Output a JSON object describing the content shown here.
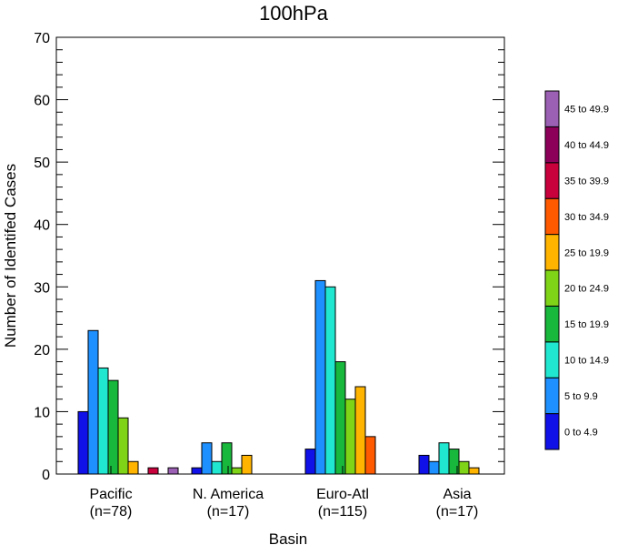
{
  "chart_data": {
    "type": "bar",
    "title": "100hPa",
    "xlabel": "Basin",
    "ylabel": "Number of Identifed Cases",
    "ylim": [
      0,
      70
    ],
    "ytick_labels": [
      "0",
      "10",
      "20",
      "30",
      "40",
      "50",
      "60",
      "70"
    ],
    "categories": [
      {
        "name": "Pacific",
        "count": "(n=78)"
      },
      {
        "name": "N. America",
        "count": "(n=17)"
      },
      {
        "name": "Euro-Atl",
        "count": "(n=115)"
      },
      {
        "name": "Asia",
        "count": "(n=17)"
      }
    ],
    "series": [
      {
        "name": "0 to 4.9",
        "color": "#1010e8",
        "values": [
          10,
          1,
          4,
          3
        ]
      },
      {
        "name": "5 to 9.9",
        "color": "#1e90ff",
        "values": [
          23,
          5,
          31,
          2
        ]
      },
      {
        "name": "10 to 14.9",
        "color": "#20e8d0",
        "values": [
          17,
          2,
          30,
          5
        ]
      },
      {
        "name": "15 to 19.9",
        "color": "#18b83c",
        "values": [
          15,
          5,
          18,
          4
        ]
      },
      {
        "name": "20 to 24.9",
        "color": "#80d418",
        "values": [
          9,
          1,
          12,
          2
        ]
      },
      {
        "name": "25 to 19.9",
        "color": "#ffb400",
        "values": [
          2,
          3,
          14,
          1
        ]
      },
      {
        "name": "30 to 34.9",
        "color": "#ff5a00",
        "values": [
          0,
          0,
          6,
          0
        ]
      },
      {
        "name": "35 to 39.9",
        "color": "#c8003c",
        "values": [
          1,
          0,
          0,
          0
        ]
      },
      {
        "name": "40 to 44.9",
        "color": "#8c005a",
        "values": [
          0,
          0,
          0,
          0
        ]
      },
      {
        "name": "45 to 49.9",
        "color": "#9b5fb4",
        "values": [
          1,
          0,
          0,
          0
        ]
      }
    ],
    "legend_position": "right",
    "grid": false
  }
}
